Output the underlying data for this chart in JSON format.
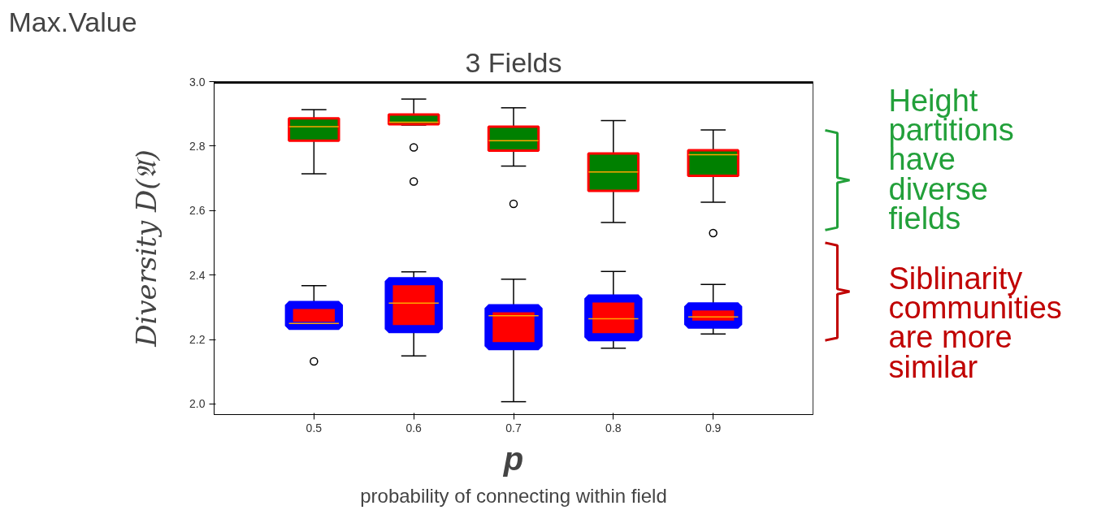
{
  "chart_data": {
    "type": "box",
    "title": "3 Fields",
    "xlabel": "p",
    "ylabel": "Diversity D(𝔄)",
    "categories": [
      "0.5",
      "0.6",
      "0.7",
      "0.8",
      "0.9"
    ],
    "ylim": [
      1.967,
      3.0
    ],
    "yticks": [
      {
        "value": 2.0,
        "label": "2.0"
      },
      2.2,
      2.4,
      2.6,
      2.8,
      {
        "value": 3.0,
        "label": "3.0"
      }
    ],
    "grid": false,
    "ref_lines": [
      {
        "axis": "y",
        "value": 3.0,
        "color": "#000000"
      }
    ],
    "annotations": [
      "Max.Value",
      "probability of connecting within field",
      "Height partitions have diverse fields",
      "Siblinarity communities are more similar"
    ],
    "series": [
      {
        "color": "#008000",
        "boxes": [
          {
            "low": 2.714,
            "q1": 2.817,
            "median": 2.86,
            "q3": 2.886,
            "high": 2.913
          },
          {
            "low": 2.865,
            "q1": 2.868,
            "median": 2.874,
            "q3": 2.898,
            "high": 2.946,
            "outliers": [
              2.796,
              2.69
            ]
          },
          {
            "low": 2.738,
            "q1": 2.786,
            "median": 2.817,
            "q3": 2.86,
            "high": 2.919,
            "outliers": [
              2.621
            ]
          },
          {
            "low": 2.563,
            "q1": 2.661,
            "median": 2.72,
            "q3": 2.777,
            "high": 2.879
          },
          {
            "low": 2.626,
            "q1": 2.708,
            "median": 2.773,
            "q3": 2.787,
            "high": 2.85,
            "outliers": [
              2.53
            ]
          }
        ]
      },
      {
        "color": "#ff0000",
        "boxes": [
          {
            "low": 2.242,
            "q1": 2.242,
            "median": 2.25,
            "q3": 2.307,
            "high": 2.367,
            "outliers": [
              2.132
            ]
          },
          {
            "low": 2.149,
            "q1": 2.232,
            "median": 2.313,
            "q3": 2.381,
            "high": 2.41
          },
          {
            "low": 2.007,
            "q1": 2.179,
            "median": 2.274,
            "q3": 2.297,
            "high": 2.387
          },
          {
            "low": 2.173,
            "q1": 2.207,
            "median": 2.264,
            "q3": 2.327,
            "high": 2.411
          },
          {
            "low": 2.217,
            "q1": 2.246,
            "median": 2.27,
            "q3": 2.303,
            "high": 2.371
          }
        ]
      }
    ]
  }
}
